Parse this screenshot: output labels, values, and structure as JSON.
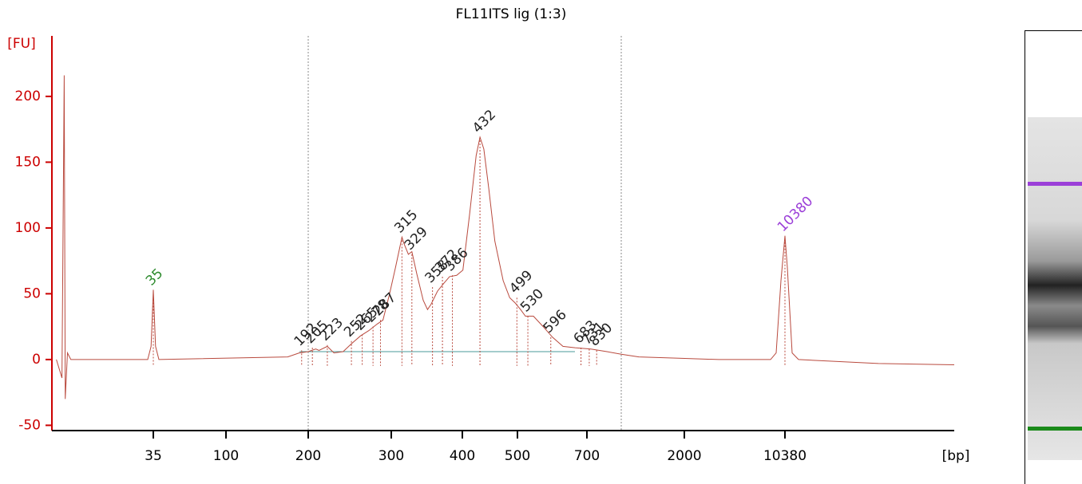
{
  "chart_data": {
    "type": "line",
    "title": "FL11ITS lig (1:3)",
    "y_label": "[FU]",
    "x_label": "[bp]",
    "color": "#b94a3e",
    "x": [
      -52,
      -47,
      -45,
      -44,
      -42,
      -39,
      30,
      33,
      35,
      37,
      40,
      175,
      189,
      200,
      209,
      213,
      223,
      231,
      242,
      252,
      263,
      273,
      283,
      290,
      298,
      306,
      315,
      318,
      324,
      329,
      336,
      345,
      351,
      356,
      365,
      374,
      382,
      392,
      401,
      413,
      425,
      432,
      439,
      448,
      459,
      474,
      486,
      496,
      509,
      523,
      546,
      574,
      601,
      631,
      666,
      753,
      967,
      1158,
      1393,
      1926,
      4859,
      9181,
      9646,
      10045,
      10380,
      10577,
      10978,
      11510,
      18158,
      24475
    ],
    "values": [
      0,
      -14,
      216,
      -30,
      5,
      0,
      0,
      10,
      53,
      10,
      0,
      2,
      5,
      6,
      8,
      7,
      10,
      5,
      6,
      12,
      18,
      22,
      27,
      30,
      50,
      70,
      93,
      88,
      80,
      82,
      65,
      45,
      38,
      42,
      52,
      58,
      63,
      64,
      68,
      110,
      155,
      169,
      160,
      130,
      90,
      60,
      47,
      43,
      38,
      33,
      33,
      25,
      17,
      10,
      9,
      8,
      6,
      4,
      2,
      1,
      0,
      0,
      5,
      60,
      94,
      70,
      5,
      0,
      -3,
      -4
    ],
    "peaks": [
      {
        "bp": 35,
        "fu": 53,
        "color": "#2e8b2e"
      },
      {
        "bp": 192,
        "fu": 7,
        "color": "#222222"
      },
      {
        "bp": 205,
        "fu": 9,
        "color": "#222222"
      },
      {
        "bp": 223,
        "fu": 11,
        "color": "#222222"
      },
      {
        "bp": 252,
        "fu": 14,
        "color": "#222222"
      },
      {
        "bp": 265,
        "fu": 19,
        "color": "#222222"
      },
      {
        "bp": 278,
        "fu": 25,
        "color": "#222222"
      },
      {
        "bp": 287,
        "fu": 30,
        "color": "#222222"
      },
      {
        "bp": 315,
        "fu": 93,
        "color": "#222222"
      },
      {
        "bp": 329,
        "fu": 80,
        "color": "#222222"
      },
      {
        "bp": 358,
        "fu": 55,
        "color": "#222222"
      },
      {
        "bp": 372,
        "fu": 63,
        "color": "#222222"
      },
      {
        "bp": 386,
        "fu": 64,
        "color": "#222222"
      },
      {
        "bp": 432,
        "fu": 169,
        "color": "#222222"
      },
      {
        "bp": 499,
        "fu": 47,
        "color": "#222222"
      },
      {
        "bp": 530,
        "fu": 33,
        "color": "#222222"
      },
      {
        "bp": 596,
        "fu": 17,
        "color": "#222222"
      },
      {
        "bp": 683,
        "fu": 9,
        "color": "#222222"
      },
      {
        "bp": 731,
        "fu": 8,
        "color": "#222222"
      },
      {
        "bp": 830,
        "fu": 7,
        "color": "#222222"
      },
      {
        "bp": 10380,
        "fu": 94,
        "color": "#9b3fd8"
      }
    ],
    "xlim": [
      -56,
      24475
    ],
    "xticks": [
      35,
      100,
      200,
      300,
      400,
      500,
      700,
      2000,
      10380
    ],
    "ylim": [
      -54,
      246
    ],
    "yticks": [
      -50,
      0,
      50,
      100,
      150,
      200
    ],
    "y_axis_color": "#cc0000"
  }
}
